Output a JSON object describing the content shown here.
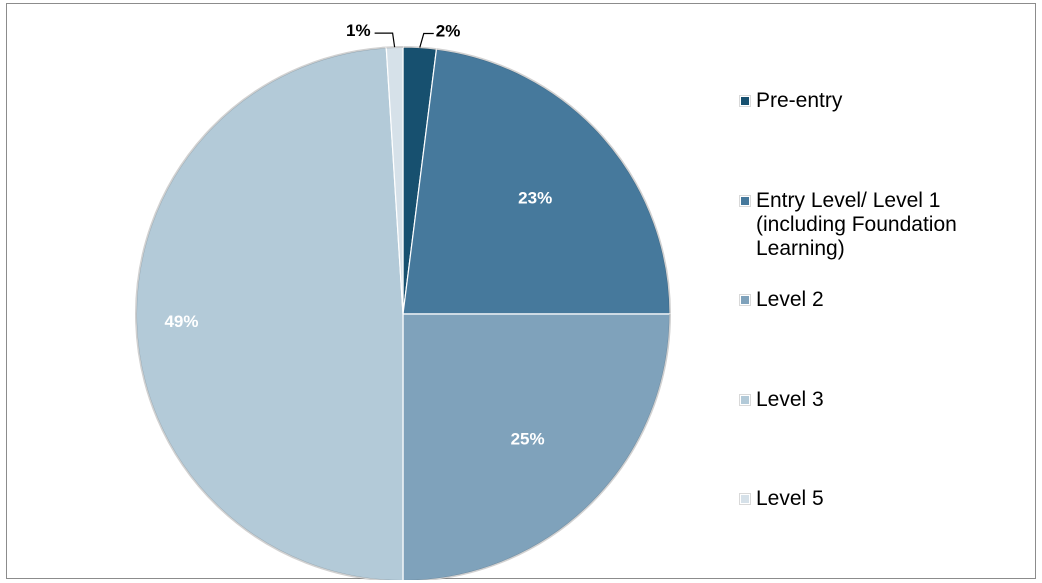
{
  "chart_data": {
    "type": "pie",
    "categories": [
      "Pre-entry",
      "Entry Level/ Level 1 (including Foundation Learning)",
      "Level 2",
      "Level 3",
      "Level 5"
    ],
    "values": [
      2,
      23,
      25,
      49,
      1
    ],
    "labels": [
      "2%",
      "23%",
      "25%",
      "49%",
      "1%"
    ],
    "colors": [
      "#17506f",
      "#46799c",
      "#7fa2bb",
      "#b3cad8",
      "#d6e1e9"
    ],
    "legend_position": "right",
    "legend": [
      {
        "label": "Pre-entry",
        "color": "#17506f"
      },
      {
        "label": "Entry Level/ Level 1 (including Foundation Learning)",
        "color": "#46799c"
      },
      {
        "label": "Level 2",
        "color": "#7fa2bb"
      },
      {
        "label": "Level 3",
        "color": "#b3cad8"
      },
      {
        "label": "Level 5",
        "color": "#d6e1e9"
      }
    ]
  }
}
